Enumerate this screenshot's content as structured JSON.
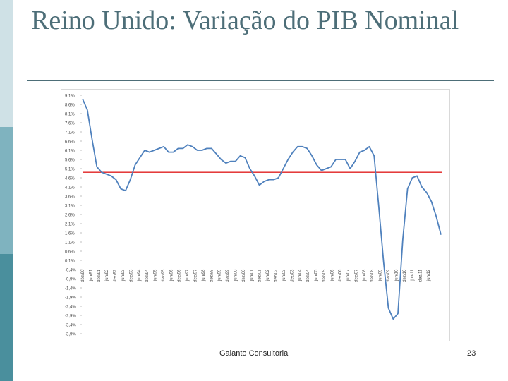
{
  "slide": {
    "title": "Reino Unido: Variação do PIB Nominal",
    "footer": "Galanto Consultoria",
    "page_number": "23"
  },
  "colors": {
    "series": "#4f81bd",
    "reference": "#e02020",
    "title": "#4d6e78"
  },
  "chart_data": {
    "type": "line",
    "title": "",
    "xlabel": "",
    "ylabel": "",
    "ylim": [
      -4.0,
      9.1
    ],
    "y_ticks": [
      "9,1%",
      "8,6%",
      "8,1%",
      "7,6%",
      "7,1%",
      "6,6%",
      "6,1%",
      "5,6%",
      "5,1%",
      "4,6%",
      "4,1%",
      "3,6%",
      "3,1%",
      "2,6%",
      "2,1%",
      "1,6%",
      "1,1%",
      "0,6%",
      "0,1%",
      "-0,4%",
      "-0,9%",
      "-1,4%",
      "-1,9%",
      "-2,4%",
      "-2,9%",
      "-3,4%",
      "-3,9%"
    ],
    "x_ticks": [
      "dez/90",
      "jun/91",
      "dez/91",
      "jun/92",
      "dez/92",
      "jun/93",
      "dez/93",
      "jun/94",
      "dez/94",
      "jun/95",
      "dez/95",
      "jun/96",
      "dez/96",
      "jun/97",
      "dez/97",
      "jun/98",
      "dez/98",
      "jun/99",
      "dez/99",
      "jun/00",
      "dez/00",
      "jun/01",
      "dez/01",
      "jun/02",
      "dez/02",
      "jun/03",
      "dez/03",
      "jun/04",
      "dez/04",
      "jun/05",
      "dez/05",
      "jun/06",
      "dez/06",
      "jun/07",
      "dez/07",
      "jun/08",
      "dez/08",
      "jun/09",
      "dez/09",
      "jun/10",
      "dez/10",
      "jun/11",
      "dez/11",
      "jun/12"
    ],
    "reference_line": {
      "y": 4.9
    },
    "series": [
      {
        "values": [
          8.9,
          8.3,
          6.7,
          5.2,
          4.9,
          4.8,
          4.7,
          4.5,
          4.0,
          3.9,
          4.5,
          5.3,
          5.7,
          6.1,
          6.0,
          6.1,
          6.2,
          6.3,
          6.0,
          6.0,
          6.2,
          6.2,
          6.4,
          6.3,
          6.1,
          6.1,
          6.2,
          6.2,
          5.9,
          5.6,
          5.4,
          5.5,
          5.5,
          5.8,
          5.7,
          5.1,
          4.7,
          4.2,
          4.4,
          4.5,
          4.5,
          4.6,
          5.1,
          5.6,
          6.0,
          6.3,
          6.3,
          6.2,
          5.8,
          5.3,
          5.0,
          5.1,
          5.2,
          5.6,
          5.6,
          5.6,
          5.1,
          5.5,
          6.0,
          6.1,
          6.3,
          5.8,
          3.0,
          0.0,
          -2.5,
          -3.1,
          -2.8,
          1.2,
          4.0,
          4.6,
          4.7,
          4.1,
          3.8,
          3.3,
          2.5,
          1.5
        ]
      }
    ]
  }
}
